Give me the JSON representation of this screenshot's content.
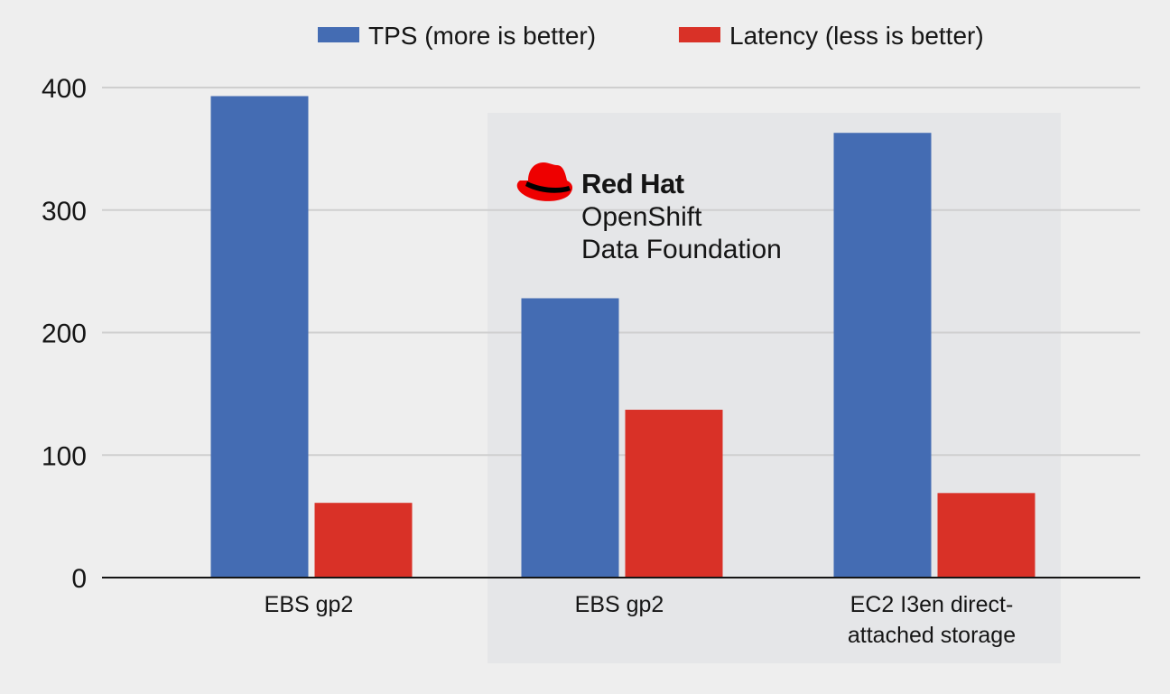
{
  "chart_data": {
    "type": "bar",
    "title": "",
    "xlabel": "",
    "ylabel": "",
    "ylim": [
      0,
      400
    ],
    "yticks": [
      "0",
      "100",
      "200",
      "300",
      "400"
    ],
    "grid": true,
    "legend_position": "top",
    "categories": [
      "EBS gp2",
      "EBS gp2",
      "EC2 I3en direct-attached storage"
    ],
    "category_lines": [
      [
        "EBS gp2"
      ],
      [
        "EBS gp2"
      ],
      [
        "EC2 I3en direct-",
        "attached storage"
      ]
    ],
    "series": [
      {
        "name": "TPS (more is better)",
        "color": "#446cb3",
        "values": [
          393,
          228,
          363
        ]
      },
      {
        "name": "Latency (less is better)",
        "color": "#d93127",
        "values": [
          61,
          137,
          69
        ]
      }
    ],
    "highlight": {
      "categories": [
        1,
        2
      ],
      "logo": {
        "line1": "Red Hat",
        "line2": "OpenShift",
        "line3": "Data Foundation"
      }
    }
  }
}
